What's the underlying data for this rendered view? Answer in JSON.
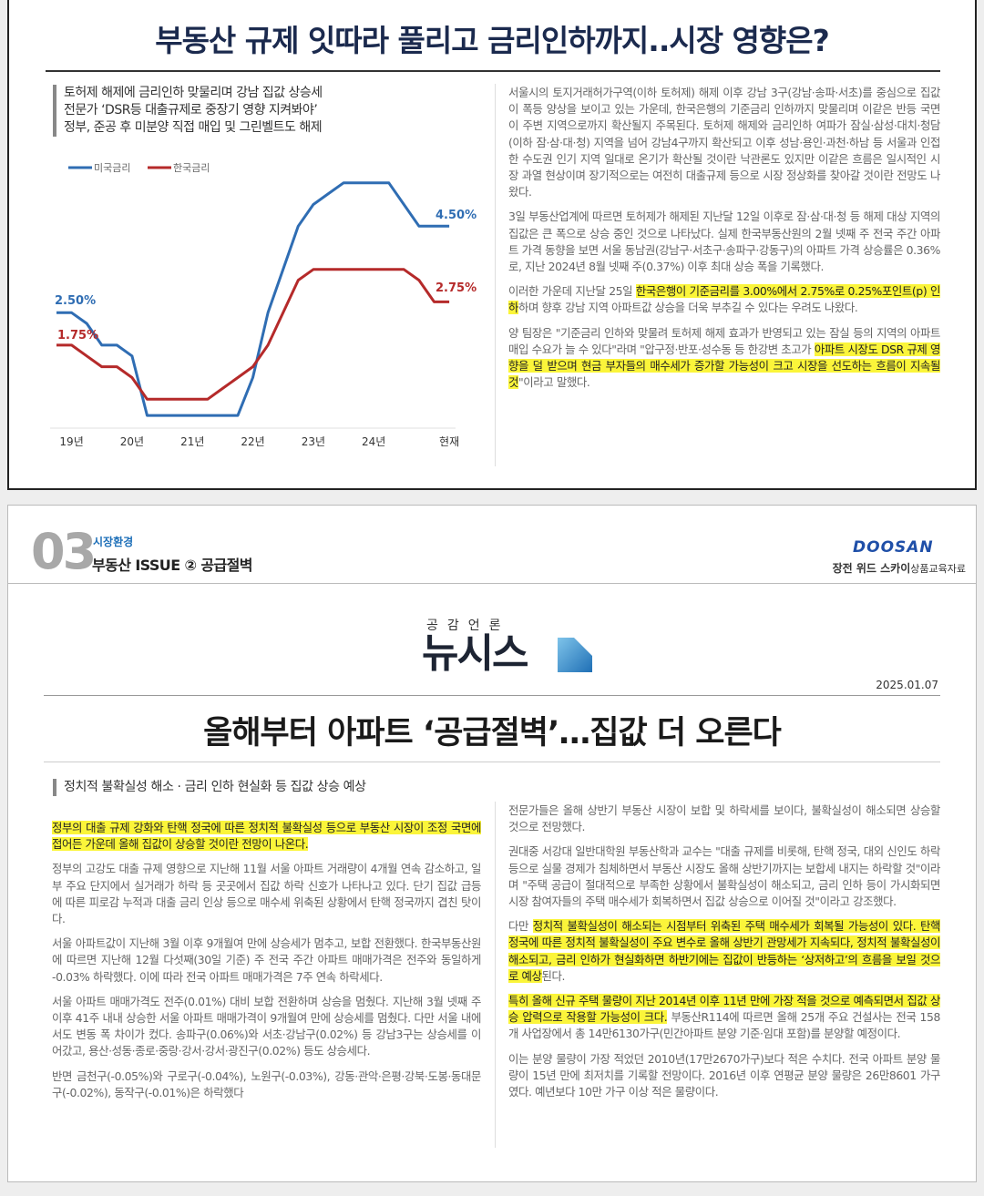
{
  "top": {
    "title": "부동산 규제 잇따라 풀리고 금리인하까지..시장 영향은?",
    "bullets": [
      "토허제 해제에 금리인하 맞물리며 강남 집값 상승세",
      "전문가 ‘DSR등 대출규제로 중장기 영향 지켜봐야’",
      "정부, 준공 후 미분양 직접 매입 및 그린벨트도 해제"
    ],
    "right_paragraphs": [
      [
        "서울시의 토지거래허가구역(이하 토허제) 해제 이후 강남 3구(강남·송파·서초)를 중심으로 집값이 폭등 양상을 보이고 있는 가운데, 한국은행의 기준금리 인하까지 맞물리며 이같은 반등 국면이 주변 지역으로까지 확산될지 주목된다. 토허제 해제와 금리인하 여파가 잠실·삼성·대치·청담(이하 잠·삼·대·청) 지역을 넘어 강남4구까지 확산되고 이후 성남·용인·과천·하남 등 서울과 인접한 수도권 인기 지역 일대로 온기가 확산될 것이란 낙관론도 있지만 이같은 흐름은 일시적인 시장 과열 현상이며 장기적으로는 여전히 대출규제 등으로 시장 정상화를 찾아갈 것이란 전망도 나왔다."
      ],
      [
        "3일 부동산업계에 따르면 토허제가 해제된 지난달 12일 이후로 잠·삼·대·청 등 해제 대상 지역의 집값은 큰 폭으로 상승 중인 것으로 나타났다. 실제 한국부동산원의 2월 넷째 주 전국 주간 아파트 가격 동향을 보면 서울 동남권(강남구·서초구·송파구·강동구)의 아파트 가격 상승률은 0.36%로, 지난 2024년 8월 넷째 주(0.37%) 이후 최대 상승 폭을 기록했다."
      ],
      [
        "이러한 가운데 지난달 25일 ",
        {
          "text": "한국은행이 기준금리를 3.00%에서 2.75%로 0.25%포인트(p) 인하",
          "highlight": true
        },
        "하며 향후 강남 지역 아파트값 상승을 더욱 부추길 수 있다는 우려도 나왔다."
      ],
      [
        "양 팀장은 \"기준금리 인하와 맞물려 토허제 해제 효과가 반영되고 있는 잠실 등의 지역의 아파트 매입 수요가 늘 수 있다\"라며 \"압구정·반포·성수동 등 한강변 초고가 ",
        {
          "text": "아파트 시장도 DSR 규제 영향을 덜 받으며 현금 부자들의 매수세가 증가할 가능성이 크고 시장을 선도하는 흐름이 지속될 것",
          "highlight": true
        },
        "\"이라고 말했다."
      ]
    ]
  },
  "chart_data": {
    "type": "line",
    "categories": [
      null,
      "19년",
      null,
      null,
      null,
      "20년",
      null,
      null,
      null,
      "21년",
      null,
      null,
      null,
      "22년",
      null,
      null,
      null,
      "23년",
      null,
      null,
      null,
      "24년",
      null,
      null,
      null,
      null,
      "현재"
    ],
    "series": [
      {
        "name": "미국금리",
        "color": "#2f6db3",
        "values": [
          2.5,
          2.5,
          2.25,
          1.75,
          1.75,
          1.5,
          0.125,
          0.125,
          0.125,
          0.125,
          0.125,
          0.125,
          0.125,
          1.0,
          2.5,
          3.5,
          4.5,
          5.0,
          5.25,
          5.5,
          5.5,
          5.5,
          5.5,
          5.0,
          4.5,
          4.5,
          4.5
        ]
      },
      {
        "name": "한국금리",
        "color": "#b52a2a",
        "values": [
          1.75,
          1.75,
          1.5,
          1.25,
          1.25,
          1.0,
          0.5,
          0.5,
          0.5,
          0.5,
          0.5,
          0.75,
          1.0,
          1.25,
          1.75,
          2.5,
          3.25,
          3.5,
          3.5,
          3.5,
          3.5,
          3.5,
          3.5,
          3.5,
          3.25,
          2.75,
          2.75
        ]
      }
    ],
    "annotations": [
      "2.50%",
      "1.75%",
      "4.50%",
      "2.75%"
    ],
    "ylim": [
      0,
      6
    ]
  },
  "bottom": {
    "section_number": "03",
    "section_label": "시장환경",
    "section_title": "부동산 ISSUE ② 공급절벽",
    "brand": "DOOSAN",
    "project": "장전 위드 스카이",
    "doc_type": "상품교육자료",
    "outlet_tagline": "공감언론",
    "outlet": "뉴시스",
    "date": "2025.01.07",
    "headline": "올해부터 아파트 ‘공급절벽’…집값 더 오른다",
    "subheading": "정치적 불확실성 해소 · 금리 인하 현실화 등 집값 상승 예상",
    "left_paragraphs": [
      [
        {
          "text": "정부의 대출 규제 강화와 탄핵 정국에 따른 정치적 불확실성 등으로 부동산 시장이 조정 국면에 접어든 가운데 올해 집값이 상승할 것이란 전망이 나온다.",
          "highlight": true
        }
      ],
      [
        "정부의 고강도 대출 규제 영향으로 지난해 11월 서울 아파트 거래량이 4개월 연속 감소하고, 일부 주요 단지에서 실거래가 하락 등 곳곳에서 집값 하락 신호가 나타나고 있다. 단기 집값 급등에 따른 피로감 누적과 대출 금리 인상 등으로 매수세 위축된 상황에서 탄핵 정국까지 겹친 탓이다."
      ],
      [
        "서울 아파트값이 지난해 3월 이후 9개월여 만에 상승세가 멈추고, 보합 전환했다. 한국부동산원에 따르면 지난해 12월 다섯째(30일 기준) 주 전국 주간 아파트 매매가격은 전주와 동일하게 -0.03% 하락했다. 이에 따라 전국 아파트 매매가격은 7주 연속 하락세다."
      ],
      [
        "서울 아파트 매매가격도 전주(0.01%) 대비 보합 전환하며 상승을 멈췄다. 지난해 3월 넷째 주 이후 41주 내내 상승한 서울 아파트 매매가격이 9개월여 만에 상승세를 멈췄다. 다만 서울 내에서도 변동 폭 차이가 컸다. 송파구(0.06%)와 서초·강남구(0.02%) 등 강남3구는 상승세를 이어갔고, 용산·성동·종로·중랑·강서·강서·광진구(0.02%) 등도 상승세다."
      ],
      [
        "반면 금천구(-0.05%)와 구로구(-0.04%), 노원구(-0.03%), 강동·관악·은평·강북·도봉·동대문구(-0.02%), 동작구(-0.01%)은 하락했다"
      ]
    ],
    "right_paragraphs": [
      [
        "전문가들은 올해 상반기 부동산 시장이 보합 및 하락세를 보이다, 불확실성이 해소되면 상승할 것으로 전망했다."
      ],
      [
        "권대중 서강대 일반대학원 부동산학과 교수는 \"대출 규제를 비롯해, 탄핵 정국, 대외 신인도 하락 등으로 실물 경제가 침체하면서 부동산 시장도 올해 상반기까지는 보합세 내지는 하락할 것\"이라며 \"주택 공급이 절대적으로 부족한 상황에서 불확실성이 해소되고, 금리 인하 등이 가시화되면 시장 참여자들의 주택 매수세가 회복하면서 집값 상승으로 이어질 것\"이라고 강조했다."
      ],
      [
        "다만 ",
        {
          "text": "정치적 불확실성이 해소되는 시점부터 위축된 주택 매수세가 회복될 가능성이 있다. 탄핵 정국에 따른 정치적 불확실성이 주요 변수로 올해 상반기 관망세가 지속되다, 정치적 불확실성이 해소되고, 금리 인하가 현실화하면 하반기에는 집값이 반등하는 ‘상저하고’의 흐름을 보일 것으로 예상",
          "highlight": true
        },
        "된다."
      ],
      [
        {
          "text": "특히 올해 신규 주택 물량이 지난 2014년 이후 11년 만에 가장 적을 것으로 예측되면서 집값 상승 압력으로 작용할 가능성이 크다.",
          "highlight": true
        },
        " 부동산R114에 따르면 올해 25개 주요 건설사는 전국 158개 사업장에서 총 14만6130가구(민간아파트 분양 기준·임대 포함)를 분양할 예정이다."
      ],
      [
        "이는 분양 물량이 가장 적었던 2010년(17만2670가구)보다 적은 수치다. 전국 아파트 분양 물량이 15년 만에 최저치를 기록할 전망이다. 2016년 이후 연평균 분양 물량은 26만8601 가구였다. 예년보다 10만 가구 이상 적은 물량이다."
      ]
    ]
  }
}
